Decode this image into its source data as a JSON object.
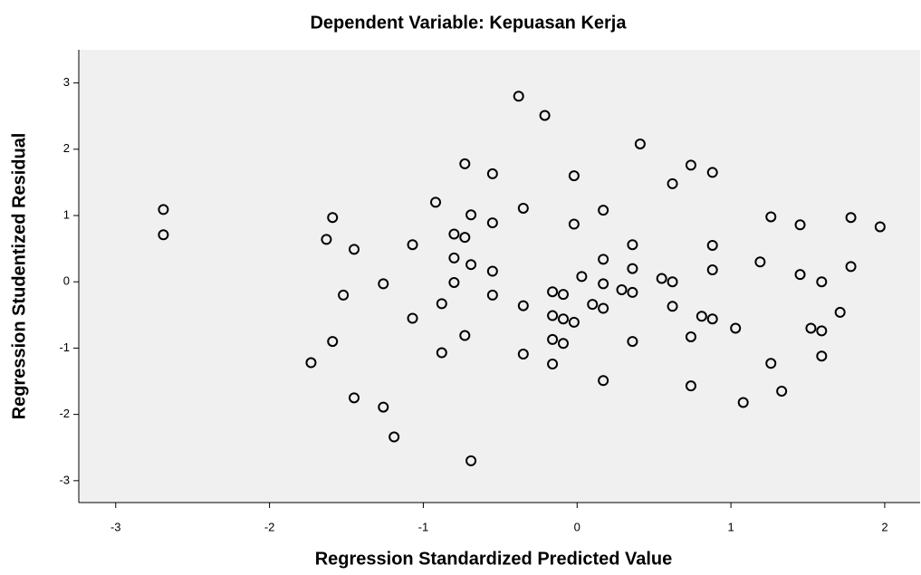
{
  "chart_data": {
    "type": "scatter",
    "title": "Dependent Variable: Kepuasan Kerja",
    "xlabel": "Regression Standardized Predicted Value",
    "ylabel": "Regression Studentized Residual",
    "xlim": [
      -3.24,
      2.23
    ],
    "ylim": [
      -3.33,
      3.5
    ],
    "xticks": [
      -3,
      -2,
      -1,
      0,
      1,
      2
    ],
    "yticks": [
      -3,
      -2,
      -1,
      0,
      1,
      2,
      3
    ],
    "color": "#000000",
    "background": "#f0f0f0",
    "x": [
      -2.69,
      -2.69,
      -1.59,
      -1.63,
      -1.45,
      -1.52,
      -1.59,
      -1.73,
      -1.45,
      -1.26,
      -1.26,
      -1.19,
      -1.07,
      -1.07,
      -0.92,
      -0.88,
      -0.88,
      -0.8,
      -0.8,
      -0.8,
      -0.73,
      -0.73,
      -0.73,
      -0.69,
      -0.69,
      -0.69,
      -0.55,
      -0.55,
      -0.55,
      -0.55,
      -0.38,
      -0.35,
      -0.35,
      -0.35,
      -0.21,
      -0.16,
      -0.16,
      -0.16,
      -0.16,
      -0.09,
      -0.09,
      -0.09,
      -0.02,
      -0.02,
      -0.02,
      0.03,
      0.1,
      0.17,
      0.17,
      0.17,
      0.17,
      0.17,
      0.29,
      0.36,
      0.36,
      0.36,
      0.36,
      0.41,
      0.55,
      0.62,
      0.62,
      0.62,
      0.74,
      0.74,
      0.74,
      0.81,
      0.88,
      0.88,
      0.88,
      0.88,
      1.03,
      1.08,
      1.19,
      1.26,
      1.26,
      1.33,
      1.45,
      1.45,
      1.52,
      1.59,
      1.59,
      1.59,
      1.71,
      1.78,
      1.78,
      1.97
    ],
    "values": [
      1.09,
      0.71,
      0.97,
      0.64,
      0.49,
      -0.2,
      -0.9,
      -1.22,
      -1.75,
      -0.03,
      -1.89,
      -2.34,
      0.56,
      -0.55,
      1.2,
      -0.33,
      -1.07,
      0.72,
      0.36,
      -0.01,
      1.78,
      0.67,
      -0.81,
      1.01,
      0.26,
      -2.7,
      1.63,
      0.89,
      0.16,
      -0.2,
      2.8,
      1.11,
      -0.36,
      -1.09,
      2.51,
      -0.15,
      -0.51,
      -0.87,
      -1.24,
      -0.19,
      -0.56,
      -0.93,
      1.6,
      0.87,
      -0.61,
      0.08,
      -0.34,
      1.08,
      0.34,
      -0.03,
      -0.4,
      -1.49,
      -0.12,
      0.56,
      0.2,
      -0.16,
      -0.9,
      2.08,
      0.05,
      1.48,
      0.0,
      -0.37,
      1.76,
      -0.83,
      -1.57,
      -0.52,
      1.65,
      0.55,
      0.18,
      -0.56,
      -0.7,
      -1.82,
      0.3,
      0.98,
      -1.23,
      -1.65,
      0.86,
      0.11,
      -0.7,
      0.0,
      -0.74,
      -1.12,
      -0.46,
      0.97,
      0.23,
      0.83
    ]
  }
}
